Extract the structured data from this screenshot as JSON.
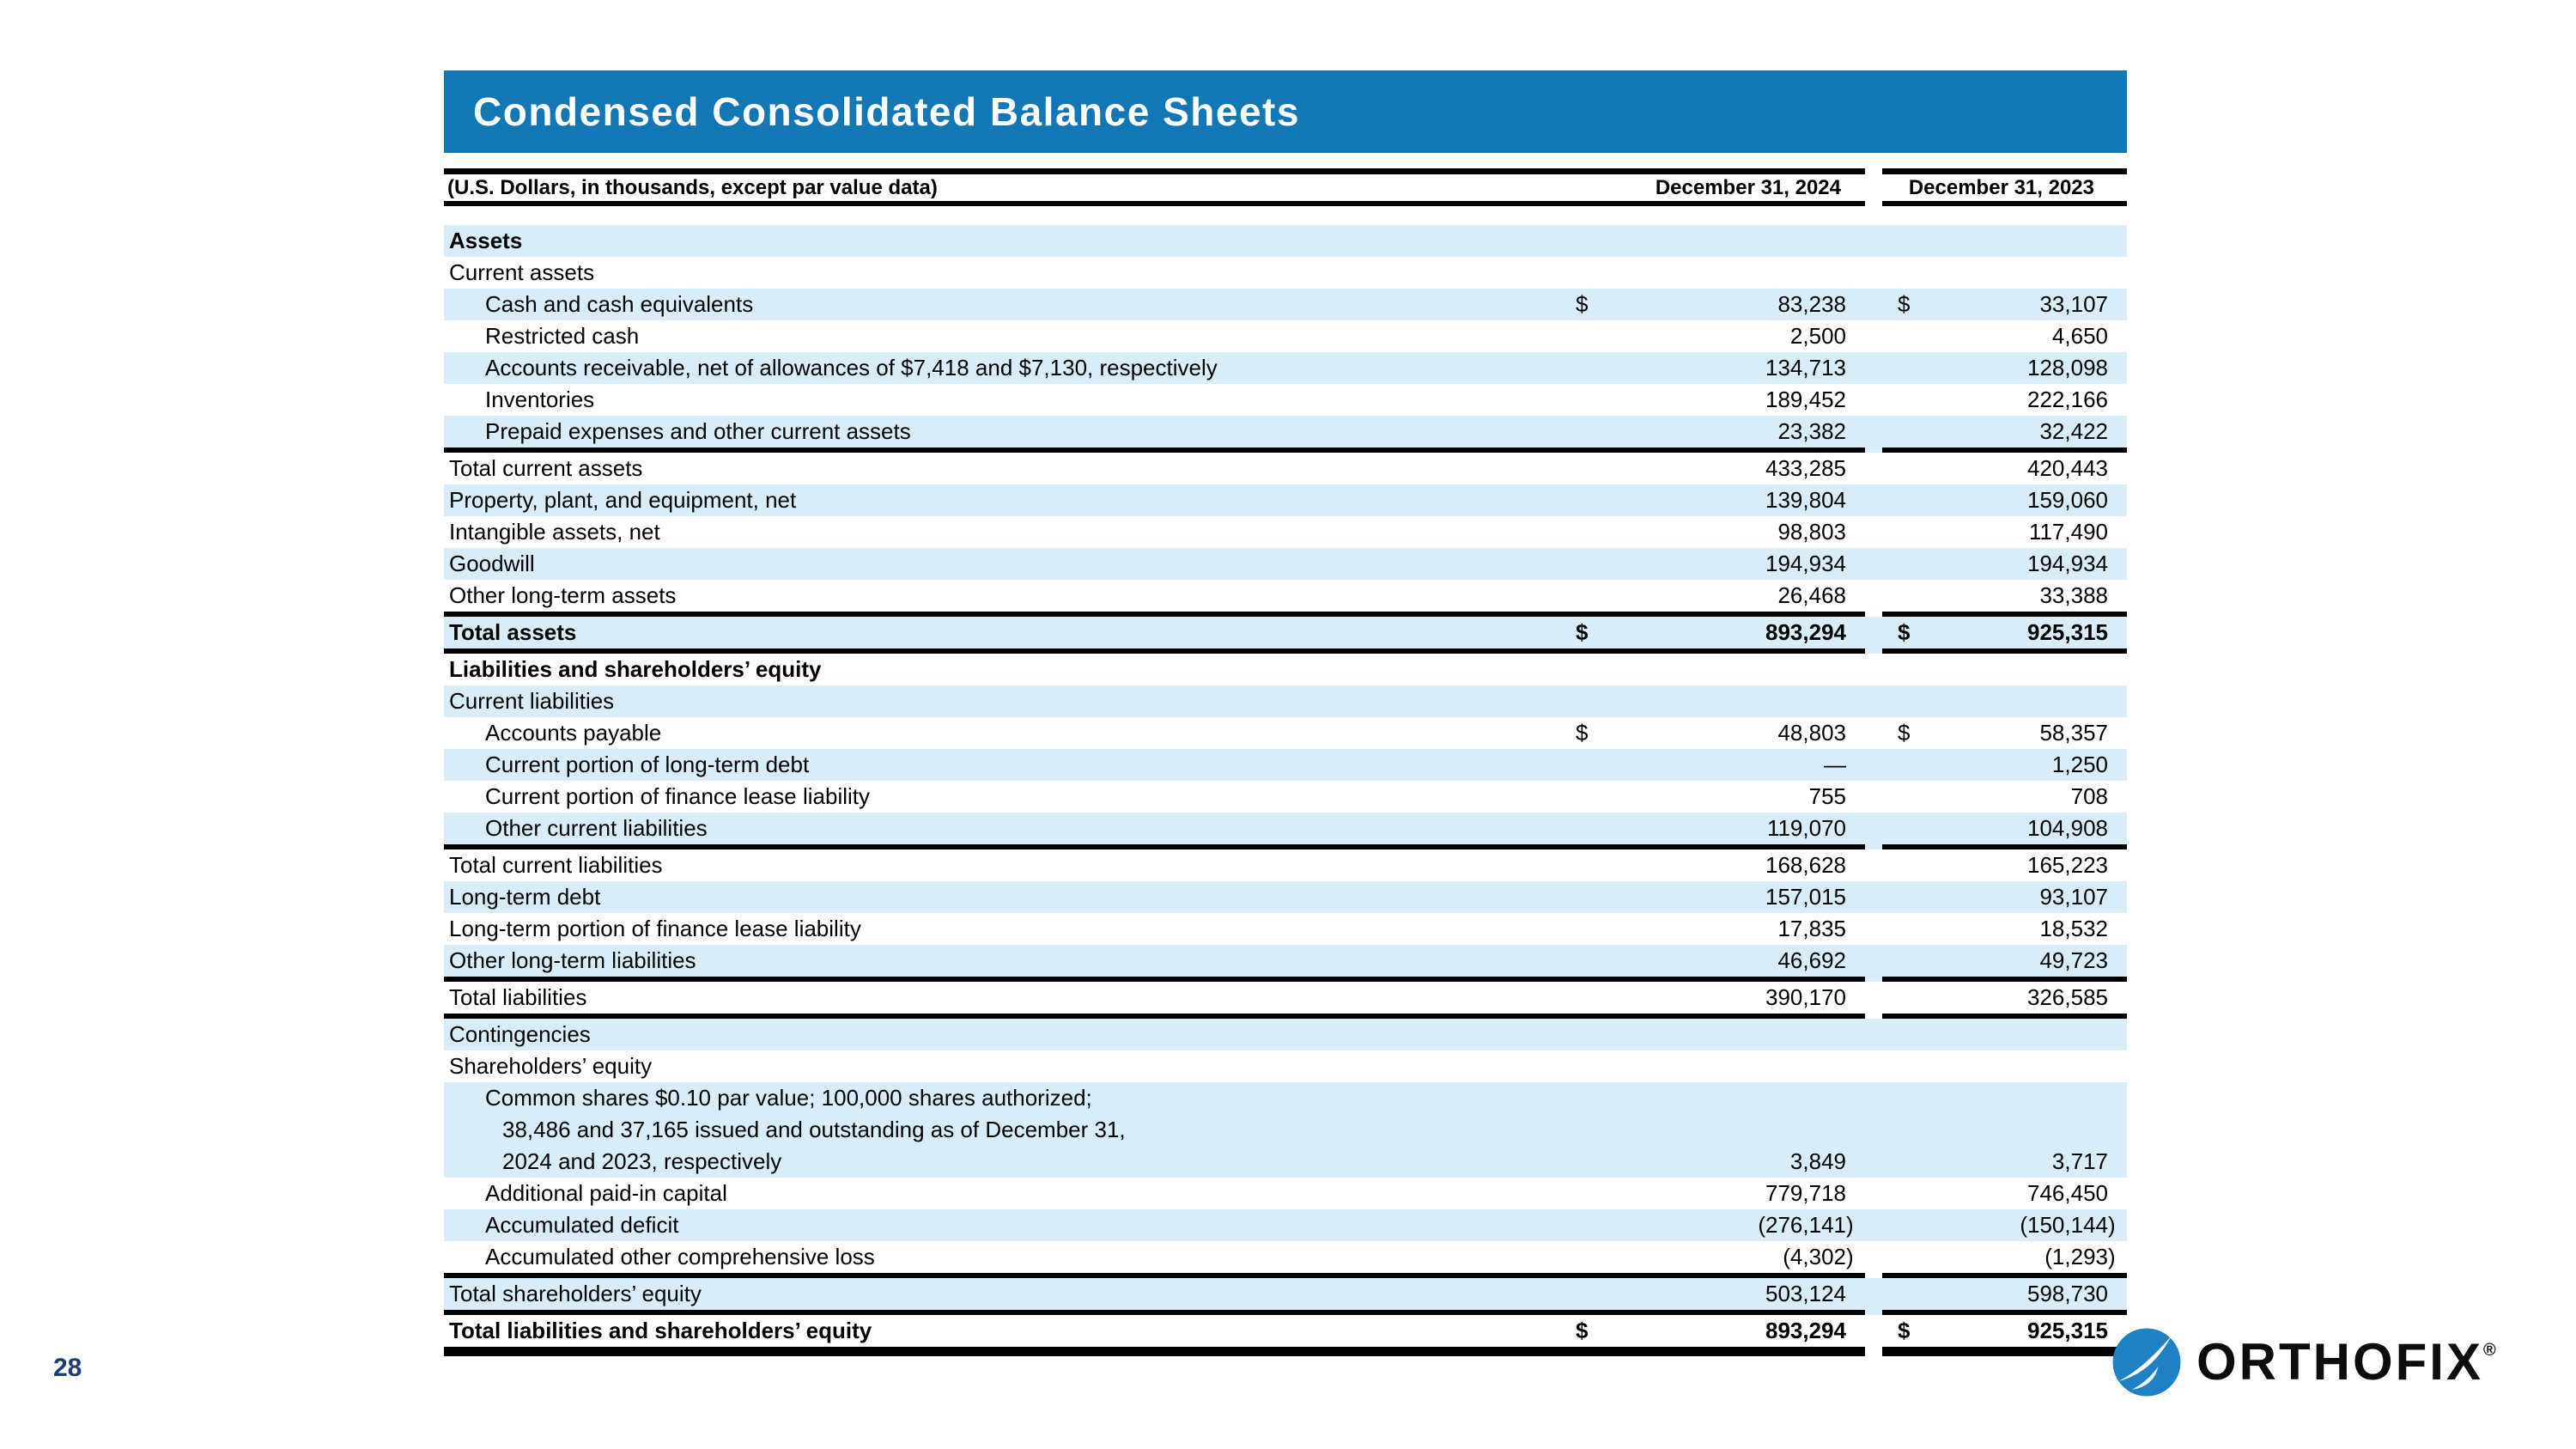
{
  "colors": {
    "title_bar_blue": "#1277b5",
    "row_band_blue": "#d9edf8",
    "page_number_navy": "#1b3e6f",
    "logo_blue": "#2080c4"
  },
  "title": "Condensed Consolidated Balance Sheets",
  "page_number": "28",
  "logo": {
    "name": "orthofix-logo",
    "text": "ORTHOFIX",
    "reg": "®"
  },
  "table": {
    "caption": "(U.S. Dollars, in thousands, except par value data)",
    "col_headers": {
      "col1": "December 31, 2024",
      "col2": "December 31, 2023"
    },
    "rows": [
      {
        "label": "Assets",
        "indent": 0,
        "shade": true,
        "bold": true,
        "dollar": false,
        "v1": "",
        "p1": "",
        "v2": "",
        "p2": "",
        "rule": "none"
      },
      {
        "label": "Current assets",
        "indent": 0,
        "shade": false,
        "bold": false,
        "dollar": false,
        "v1": "",
        "p1": "",
        "v2": "",
        "p2": "",
        "rule": "none"
      },
      {
        "label": "Cash and cash equivalents",
        "indent": 1,
        "shade": true,
        "bold": false,
        "dollar": true,
        "v1": "83,238",
        "p1": "",
        "v2": "33,107",
        "p2": "",
        "rule": "none"
      },
      {
        "label": "Restricted cash",
        "indent": 1,
        "shade": false,
        "bold": false,
        "dollar": false,
        "v1": "2,500",
        "p1": "",
        "v2": "4,650",
        "p2": "",
        "rule": "none"
      },
      {
        "label": "Accounts receivable, net of allowances of $7,418 and $7,130, respectively",
        "indent": 1,
        "shade": true,
        "bold": false,
        "dollar": false,
        "v1": "134,713",
        "p1": "",
        "v2": "128,098",
        "p2": "",
        "rule": "none"
      },
      {
        "label": "Inventories",
        "indent": 1,
        "shade": false,
        "bold": false,
        "dollar": false,
        "v1": "189,452",
        "p1": "",
        "v2": "222,166",
        "p2": "",
        "rule": "none"
      },
      {
        "label": "Prepaid expenses and other current assets",
        "indent": 1,
        "shade": true,
        "bold": false,
        "dollar": false,
        "v1": "23,382",
        "p1": "",
        "v2": "32,422",
        "p2": "",
        "rule": "bb"
      },
      {
        "label": "Total current assets",
        "indent": 0,
        "shade": false,
        "bold": false,
        "dollar": false,
        "v1": "433,285",
        "p1": "",
        "v2": "420,443",
        "p2": "",
        "rule": "none"
      },
      {
        "label": "Property, plant, and equipment, net",
        "indent": 0,
        "shade": true,
        "bold": false,
        "dollar": false,
        "v1": "139,804",
        "p1": "",
        "v2": "159,060",
        "p2": "",
        "rule": "none"
      },
      {
        "label": "Intangible assets, net",
        "indent": 0,
        "shade": false,
        "bold": false,
        "dollar": false,
        "v1": "98,803",
        "p1": "",
        "v2": "117,490",
        "p2": "",
        "rule": "none"
      },
      {
        "label": "Goodwill",
        "indent": 0,
        "shade": true,
        "bold": false,
        "dollar": false,
        "v1": "194,934",
        "p1": "",
        "v2": "194,934",
        "p2": "",
        "rule": "none"
      },
      {
        "label": "Other long-term assets",
        "indent": 0,
        "shade": false,
        "bold": false,
        "dollar": false,
        "v1": "26,468",
        "p1": "",
        "v2": "33,388",
        "p2": "",
        "rule": "bb"
      },
      {
        "label": "Total assets",
        "indent": 0,
        "shade": true,
        "bold": true,
        "dollar": true,
        "v1": "893,294",
        "p1": "",
        "v2": "925,315",
        "p2": "",
        "rule": "bb"
      },
      {
        "label": "Liabilities and shareholders’ equity",
        "indent": 0,
        "shade": false,
        "bold": true,
        "dollar": false,
        "v1": "",
        "p1": "",
        "v2": "",
        "p2": "",
        "rule": "none"
      },
      {
        "label": "Current liabilities",
        "indent": 0,
        "shade": true,
        "bold": false,
        "dollar": false,
        "v1": "",
        "p1": "",
        "v2": "",
        "p2": "",
        "rule": "none"
      },
      {
        "label": "Accounts payable",
        "indent": 1,
        "shade": false,
        "bold": false,
        "dollar": true,
        "v1": "48,803",
        "p1": "",
        "v2": "58,357",
        "p2": "",
        "rule": "none"
      },
      {
        "label": "Current portion of long-term debt",
        "indent": 1,
        "shade": true,
        "bold": false,
        "dollar": false,
        "v1": "—",
        "p1": "",
        "v2": "1,250",
        "p2": "",
        "rule": "none"
      },
      {
        "label": "Current portion of finance lease liability",
        "indent": 1,
        "shade": false,
        "bold": false,
        "dollar": false,
        "v1": "755",
        "p1": "",
        "v2": "708",
        "p2": "",
        "rule": "none"
      },
      {
        "label": "Other current liabilities",
        "indent": 1,
        "shade": true,
        "bold": false,
        "dollar": false,
        "v1": "119,070",
        "p1": "",
        "v2": "104,908",
        "p2": "",
        "rule": "bb"
      },
      {
        "label": "Total current liabilities",
        "indent": 0,
        "shade": false,
        "bold": false,
        "dollar": false,
        "v1": "168,628",
        "p1": "",
        "v2": "165,223",
        "p2": "",
        "rule": "none"
      },
      {
        "label": "Long-term debt",
        "indent": 0,
        "shade": true,
        "bold": false,
        "dollar": false,
        "v1": "157,015",
        "p1": "",
        "v2": "93,107",
        "p2": "",
        "rule": "none"
      },
      {
        "label": "Long-term portion of finance lease liability",
        "indent": 0,
        "shade": false,
        "bold": false,
        "dollar": false,
        "v1": "17,835",
        "p1": "",
        "v2": "18,532",
        "p2": "",
        "rule": "none"
      },
      {
        "label": "Other long-term liabilities",
        "indent": 0,
        "shade": true,
        "bold": false,
        "dollar": false,
        "v1": "46,692",
        "p1": "",
        "v2": "49,723",
        "p2": "",
        "rule": "bb"
      },
      {
        "label": "Total liabilities",
        "indent": 0,
        "shade": false,
        "bold": false,
        "dollar": false,
        "v1": "390,170",
        "p1": "",
        "v2": "326,585",
        "p2": "",
        "rule": "bb"
      },
      {
        "label": "Contingencies",
        "indent": 0,
        "shade": true,
        "bold": false,
        "dollar": false,
        "v1": "",
        "p1": "",
        "v2": "",
        "p2": "",
        "rule": "none"
      },
      {
        "label": "Shareholders’ equity",
        "indent": 0,
        "shade": false,
        "bold": false,
        "dollar": false,
        "v1": "",
        "p1": "",
        "v2": "",
        "p2": "",
        "rule": "none"
      },
      {
        "lines": [
          "Common shares $0.10 par value; 100,000 shares authorized;",
          "38,486 and 37,165 issued and outstanding as of December 31,",
          "2024 and 2023, respectively"
        ],
        "indent": 1,
        "shade": true,
        "bold": false,
        "dollar": false,
        "v1": "3,849",
        "p1": "",
        "v2": "3,717",
        "p2": "",
        "rule": "none"
      },
      {
        "label": "Additional paid-in capital",
        "indent": 1,
        "shade": false,
        "bold": false,
        "dollar": false,
        "v1": "779,718",
        "p1": "",
        "v2": "746,450",
        "p2": "",
        "rule": "none"
      },
      {
        "label": "Accumulated deficit",
        "indent": 1,
        "shade": true,
        "bold": false,
        "dollar": false,
        "v1": "(276,141",
        "p1": ")",
        "v2": "(150,144",
        "p2": ")",
        "rule": "none"
      },
      {
        "label": "Accumulated other comprehensive loss",
        "indent": 1,
        "shade": false,
        "bold": false,
        "dollar": false,
        "v1": "(4,302",
        "p1": ")",
        "v2": "(1,293",
        "p2": ")",
        "rule": "bb"
      },
      {
        "label": "Total shareholders’ equity",
        "indent": 0,
        "shade": true,
        "bold": false,
        "dollar": false,
        "v1": "503,124",
        "p1": "",
        "v2": "598,730",
        "p2": "",
        "rule": "bb"
      },
      {
        "label": "Total liabilities and shareholders’ equity",
        "indent": 0,
        "shade": false,
        "bold": true,
        "dollar": true,
        "v1": "893,294",
        "p1": "",
        "v2": "925,315",
        "p2": "",
        "rule": "bbf"
      }
    ]
  }
}
